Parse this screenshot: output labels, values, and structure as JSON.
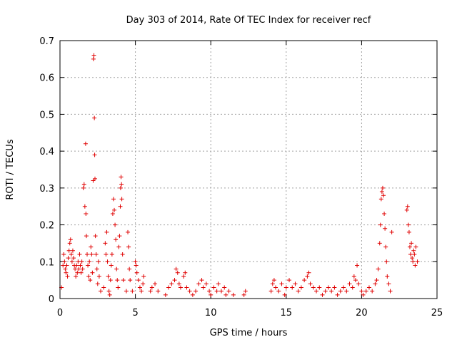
{
  "chart_data": {
    "type": "scatter",
    "title": "Day 303 of 2014, Rate Of TEC Index for receiver recf",
    "xlabel": "GPS time / hours",
    "ylabel": "ROTI / TECUs",
    "xlim": [
      0,
      25
    ],
    "ylim": [
      0,
      0.7
    ],
    "xticks": [
      0,
      5,
      10,
      15,
      20,
      25
    ],
    "xtick_labels": [
      "0",
      "5",
      "10",
      "15",
      "20",
      "25"
    ],
    "yticks": [
      0,
      0.1,
      0.2,
      0.3,
      0.4,
      0.5,
      0.6,
      0.7
    ],
    "ytick_labels": [
      "0",
      "0.1",
      "0.2",
      "0.3",
      "0.4",
      "0.5",
      "0.6",
      "0.7"
    ],
    "grid": true,
    "marker": "+",
    "color": "#e00000",
    "series": [
      {
        "name": "ROTI",
        "points": [
          [
            0.1,
            0.03
          ],
          [
            0.2,
            0.09
          ],
          [
            0.25,
            0.12
          ],
          [
            0.3,
            0.1
          ],
          [
            0.35,
            0.08
          ],
          [
            0.4,
            0.07
          ],
          [
            0.45,
            0.09
          ],
          [
            0.5,
            0.06
          ],
          [
            0.55,
            0.11
          ],
          [
            0.6,
            0.13
          ],
          [
            0.65,
            0.15
          ],
          [
            0.7,
            0.16
          ],
          [
            0.75,
            0.12
          ],
          [
            0.8,
            0.1
          ],
          [
            0.85,
            0.13
          ],
          [
            0.9,
            0.11
          ],
          [
            0.95,
            0.09
          ],
          [
            1.0,
            0.08
          ],
          [
            1.05,
            0.06
          ],
          [
            1.1,
            0.09
          ],
          [
            1.15,
            0.07
          ],
          [
            1.2,
            0.1
          ],
          [
            1.25,
            0.08
          ],
          [
            1.3,
            0.12
          ],
          [
            1.35,
            0.09
          ],
          [
            1.4,
            0.07
          ],
          [
            1.45,
            0.1
          ],
          [
            1.5,
            0.08
          ],
          [
            1.55,
            0.3
          ],
          [
            1.6,
            0.31
          ],
          [
            1.65,
            0.25
          ],
          [
            1.7,
            0.42
          ],
          [
            1.72,
            0.23
          ],
          [
            1.75,
            0.17
          ],
          [
            1.8,
            0.12
          ],
          [
            1.85,
            0.09
          ],
          [
            1.9,
            0.06
          ],
          [
            1.95,
            0.1
          ],
          [
            2.0,
            0.05
          ],
          [
            2.05,
            0.14
          ],
          [
            2.1,
            0.12
          ],
          [
            2.15,
            0.07
          ],
          [
            2.2,
            0.32
          ],
          [
            2.22,
            0.65
          ],
          [
            2.25,
            0.66
          ],
          [
            2.28,
            0.49
          ],
          [
            2.3,
            0.39
          ],
          [
            2.32,
            0.325
          ],
          [
            2.35,
            0.17
          ],
          [
            2.4,
            0.12
          ],
          [
            2.45,
            0.08
          ],
          [
            2.5,
            0.04
          ],
          [
            2.55,
            0.1
          ],
          [
            2.6,
            0.06
          ],
          [
            2.7,
            0.02
          ],
          [
            2.9,
            0.03
          ],
          [
            3.0,
            0.15
          ],
          [
            3.05,
            0.12
          ],
          [
            3.1,
            0.18
          ],
          [
            3.15,
            0.1
          ],
          [
            3.2,
            0.06
          ],
          [
            3.25,
            0.02
          ],
          [
            3.3,
            0.01
          ],
          [
            3.35,
            0.05
          ],
          [
            3.4,
            0.09
          ],
          [
            3.45,
            0.12
          ],
          [
            3.5,
            0.23
          ],
          [
            3.55,
            0.27
          ],
          [
            3.6,
            0.24
          ],
          [
            3.65,
            0.2
          ],
          [
            3.7,
            0.16
          ],
          [
            3.75,
            0.08
          ],
          [
            3.8,
            0.05
          ],
          [
            3.85,
            0.03
          ],
          [
            3.9,
            0.14
          ],
          [
            3.95,
            0.17
          ],
          [
            4.0,
            0.25
          ],
          [
            4.02,
            0.3
          ],
          [
            4.05,
            0.33
          ],
          [
            4.08,
            0.31
          ],
          [
            4.1,
            0.27
          ],
          [
            4.15,
            0.12
          ],
          [
            4.2,
            0.05
          ],
          [
            4.4,
            0.02
          ],
          [
            4.5,
            0.18
          ],
          [
            4.55,
            0.14
          ],
          [
            4.6,
            0.08
          ],
          [
            4.65,
            0.05
          ],
          [
            4.8,
            0.02
          ],
          [
            5.0,
            0.1
          ],
          [
            5.05,
            0.09
          ],
          [
            5.1,
            0.07
          ],
          [
            5.2,
            0.05
          ],
          [
            5.3,
            0.03
          ],
          [
            5.4,
            0.02
          ],
          [
            5.5,
            0.04
          ],
          [
            5.55,
            0.06
          ],
          [
            6.0,
            0.02
          ],
          [
            6.1,
            0.03
          ],
          [
            6.3,
            0.04
          ],
          [
            6.5,
            0.02
          ],
          [
            7.0,
            0.01
          ],
          [
            7.2,
            0.03
          ],
          [
            7.4,
            0.04
          ],
          [
            7.6,
            0.05
          ],
          [
            7.7,
            0.08
          ],
          [
            7.8,
            0.07
          ],
          [
            7.9,
            0.04
          ],
          [
            8.0,
            0.03
          ],
          [
            8.2,
            0.06
          ],
          [
            8.3,
            0.07
          ],
          [
            8.4,
            0.03
          ],
          [
            8.6,
            0.02
          ],
          [
            8.8,
            0.01
          ],
          [
            9.0,
            0.02
          ],
          [
            9.2,
            0.04
          ],
          [
            9.4,
            0.05
          ],
          [
            9.5,
            0.03
          ],
          [
            9.7,
            0.04
          ],
          [
            9.9,
            0.02
          ],
          [
            10.0,
            0.01
          ],
          [
            10.2,
            0.03
          ],
          [
            10.4,
            0.02
          ],
          [
            10.5,
            0.04
          ],
          [
            10.7,
            0.02
          ],
          [
            10.9,
            0.03
          ],
          [
            11.0,
            0.01
          ],
          [
            11.2,
            0.02
          ],
          [
            11.5,
            0.01
          ],
          [
            12.2,
            0.01
          ],
          [
            12.3,
            0.02
          ],
          [
            14.0,
            0.02
          ],
          [
            14.1,
            0.04
          ],
          [
            14.2,
            0.05
          ],
          [
            14.3,
            0.03
          ],
          [
            14.5,
            0.02
          ],
          [
            14.7,
            0.04
          ],
          [
            14.9,
            0.01
          ],
          [
            15.0,
            0.03
          ],
          [
            15.2,
            0.05
          ],
          [
            15.4,
            0.03
          ],
          [
            15.6,
            0.04
          ],
          [
            15.8,
            0.02
          ],
          [
            16.0,
            0.03
          ],
          [
            16.2,
            0.05
          ],
          [
            16.4,
            0.06
          ],
          [
            16.5,
            0.07
          ],
          [
            16.6,
            0.04
          ],
          [
            16.8,
            0.03
          ],
          [
            17.0,
            0.02
          ],
          [
            17.2,
            0.03
          ],
          [
            17.4,
            0.01
          ],
          [
            17.6,
            0.02
          ],
          [
            17.8,
            0.03
          ],
          [
            18.0,
            0.02
          ],
          [
            18.2,
            0.03
          ],
          [
            18.4,
            0.01
          ],
          [
            18.6,
            0.02
          ],
          [
            18.8,
            0.03
          ],
          [
            19.0,
            0.02
          ],
          [
            19.2,
            0.04
          ],
          [
            19.4,
            0.03
          ],
          [
            19.5,
            0.06
          ],
          [
            19.6,
            0.05
          ],
          [
            19.7,
            0.09
          ],
          [
            19.8,
            0.04
          ],
          [
            20.0,
            0.02
          ],
          [
            20.1,
            0.01
          ],
          [
            20.3,
            0.02
          ],
          [
            20.5,
            0.03
          ],
          [
            20.7,
            0.02
          ],
          [
            20.9,
            0.04
          ],
          [
            21.0,
            0.05
          ],
          [
            21.1,
            0.08
          ],
          [
            21.2,
            0.15
          ],
          [
            21.25,
            0.2
          ],
          [
            21.3,
            0.27
          ],
          [
            21.35,
            0.29
          ],
          [
            21.4,
            0.3
          ],
          [
            21.45,
            0.28
          ],
          [
            21.5,
            0.23
          ],
          [
            21.55,
            0.19
          ],
          [
            21.6,
            0.14
          ],
          [
            21.65,
            0.1
          ],
          [
            21.7,
            0.06
          ],
          [
            21.8,
            0.04
          ],
          [
            21.9,
            0.02
          ],
          [
            22.0,
            0.18
          ],
          [
            23.0,
            0.24
          ],
          [
            23.05,
            0.25
          ],
          [
            23.1,
            0.2
          ],
          [
            23.15,
            0.18
          ],
          [
            23.2,
            0.14
          ],
          [
            23.25,
            0.12
          ],
          [
            23.3,
            0.15
          ],
          [
            23.35,
            0.11
          ],
          [
            23.4,
            0.1
          ],
          [
            23.45,
            0.13
          ],
          [
            23.5,
            0.12
          ],
          [
            23.55,
            0.09
          ],
          [
            23.6,
            0.14
          ],
          [
            23.7,
            0.1
          ]
        ]
      }
    ]
  }
}
